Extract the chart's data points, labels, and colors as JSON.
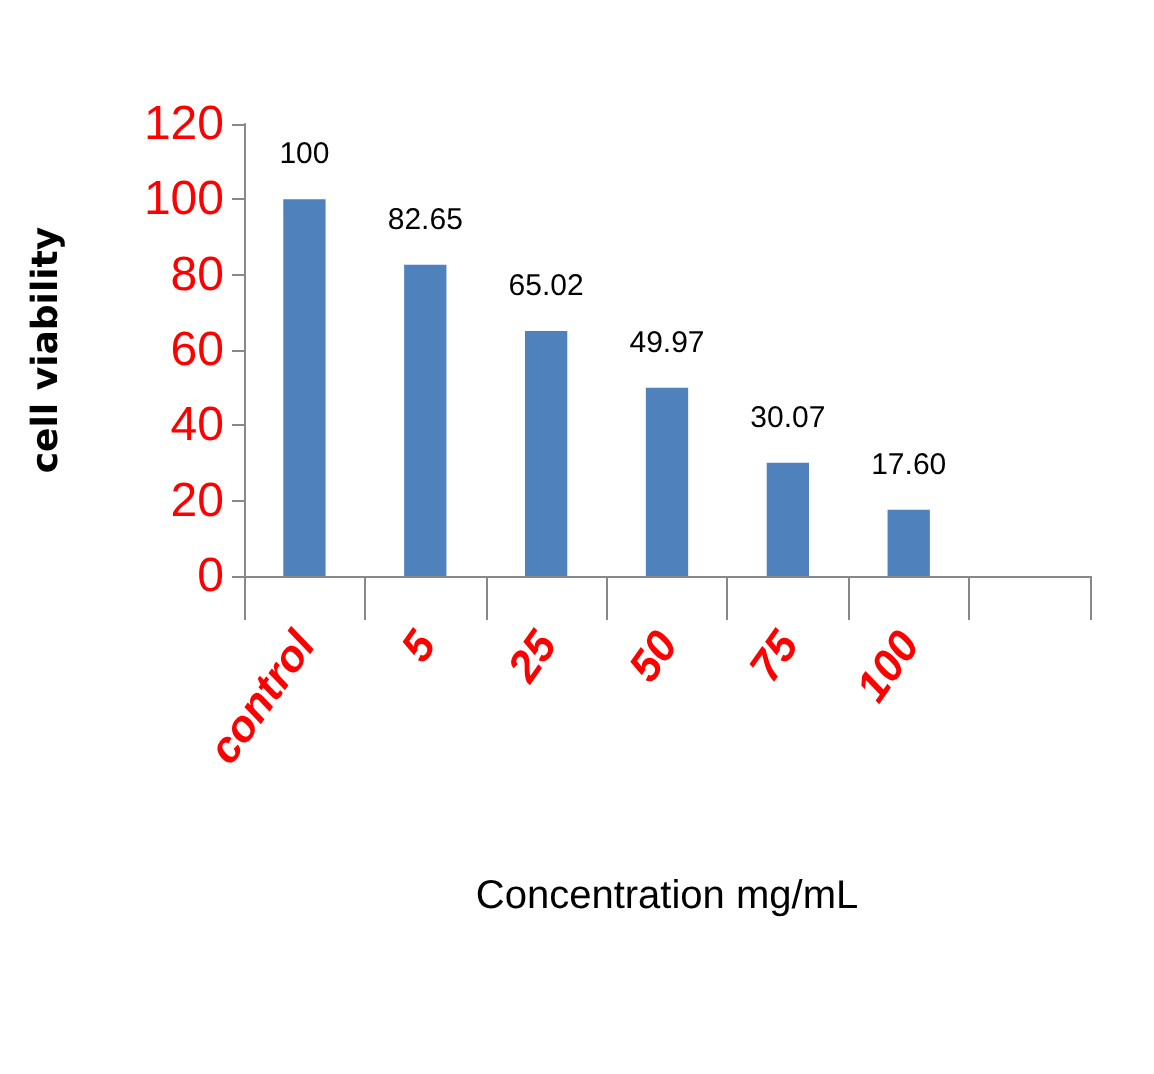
{
  "chart_data": {
    "type": "bar",
    "xlabel": "Concentration mg/mL",
    "ylabel": "cell viability",
    "categories": [
      "control",
      "5",
      "25",
      "50",
      "75",
      "100",
      null
    ],
    "values": [
      100,
      82.65,
      65.02,
      49.97,
      30.07,
      17.6,
      null
    ],
    "value_labels": [
      "100",
      "82.65",
      "65.02",
      "49.97",
      "30.07",
      "17.60",
      null
    ],
    "color": "#4f81bd",
    "ylim": [
      0,
      120
    ],
    "yticks": [
      0,
      20,
      40,
      60,
      80,
      100,
      120
    ],
    "grid": false
  }
}
